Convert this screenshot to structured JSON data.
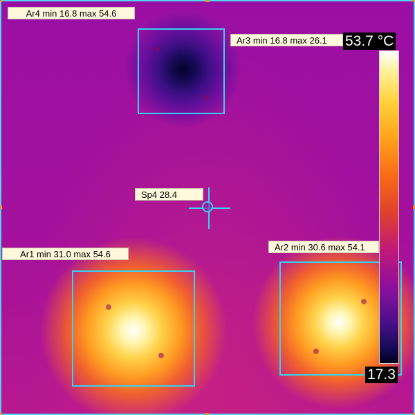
{
  "areas": [
    {
      "id": "ar4",
      "label": "Ar4 min 16.8 max 54.6"
    },
    {
      "id": "ar3",
      "label": "Ar3 min 16.8 max 26.1"
    },
    {
      "id": "ar1",
      "label": "Ar1 min 31.0 max 54.6"
    },
    {
      "id": "ar2",
      "label": "Ar2 min 30.6 max 54.1"
    }
  ],
  "spot": {
    "label": "Sp4 28.4"
  },
  "scale": {
    "max_label": "53.7 °C",
    "min_label": "17.3"
  },
  "colors": {
    "marker": "#35d3f2",
    "label_bg": "#fff8dc",
    "frame_corner": "#f09020"
  }
}
